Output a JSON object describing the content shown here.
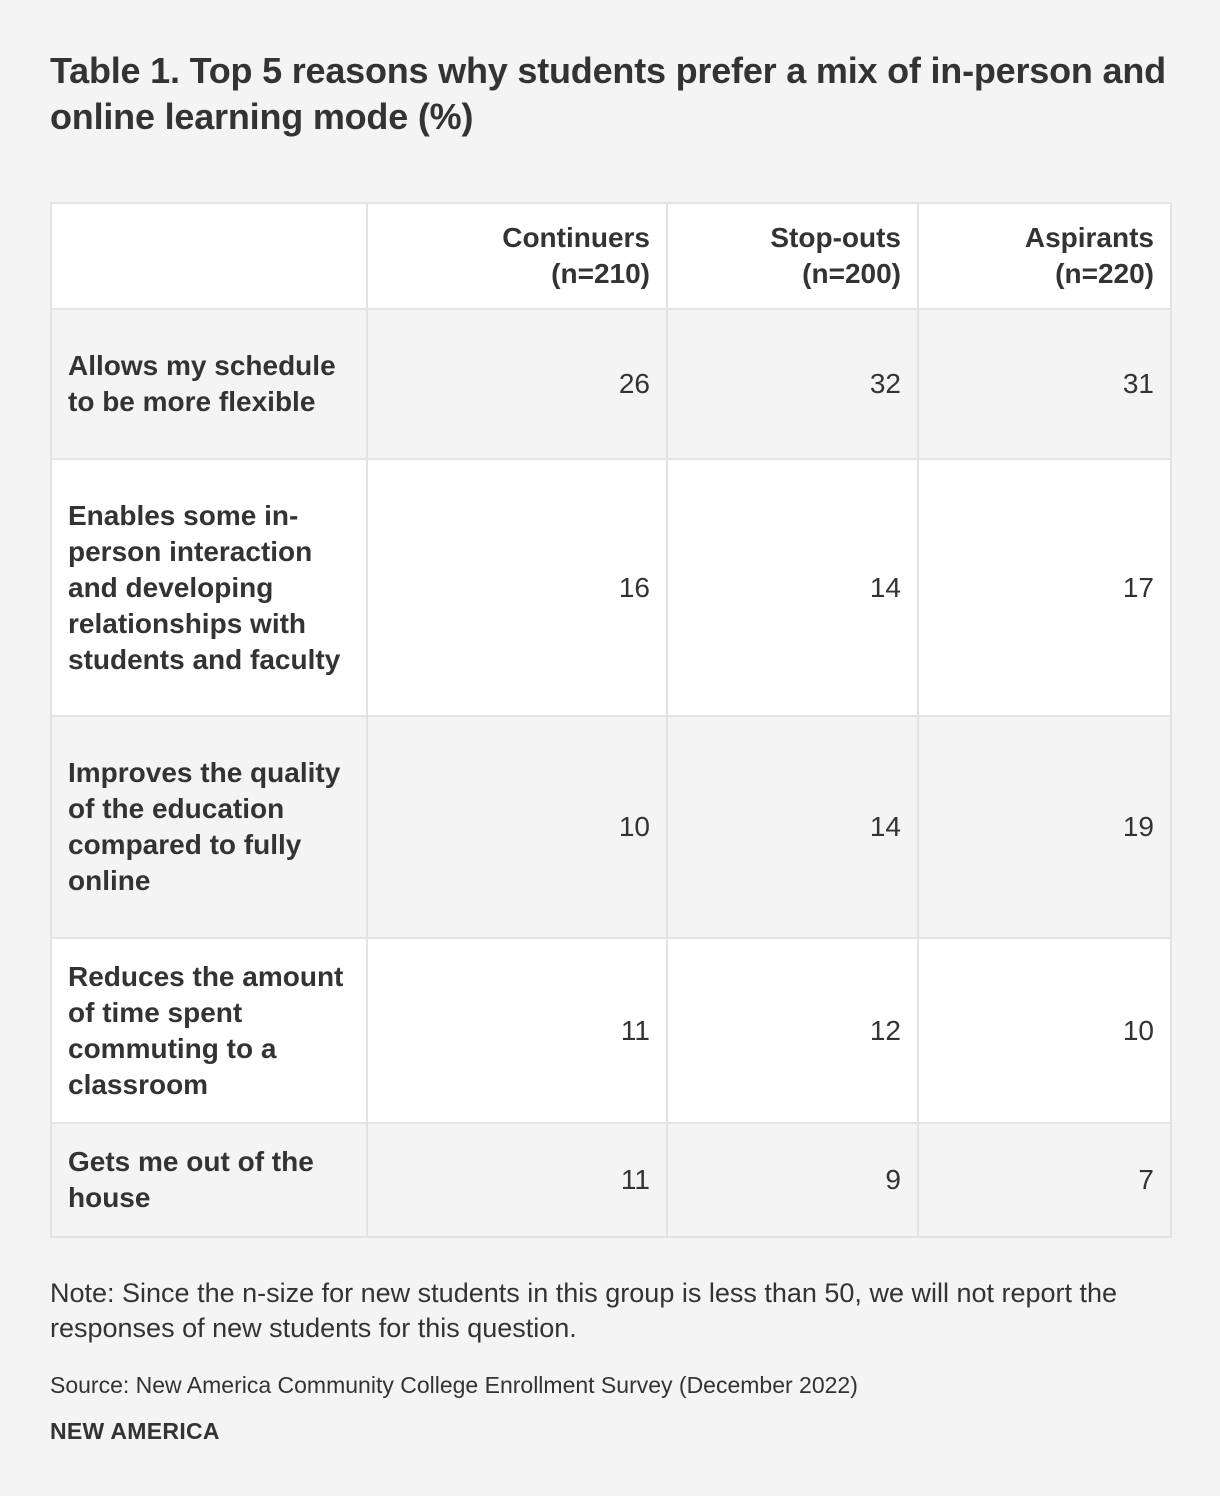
{
  "chart_data": {
    "type": "table",
    "title": "Table 1. Top 5 reasons why students prefer a mix of in-person and online learning mode (%)",
    "columns": [
      {
        "name": "Continuers",
        "n": "(n=210)"
      },
      {
        "name": "Stop-outs",
        "n": "(n=200)"
      },
      {
        "name": "Aspirants",
        "n": "(n=220)"
      }
    ],
    "rows": [
      {
        "label": "Allows my schedule to be more flexible",
        "values": [
          "26",
          "32",
          "31"
        ]
      },
      {
        "label": "Enables some in-person interaction and developing relationships with students and faculty",
        "values": [
          "16",
          "14",
          "17"
        ]
      },
      {
        "label": "Improves the quality of the education compared to fully online",
        "values": [
          "10",
          "14",
          "19"
        ]
      },
      {
        "label": "Reduces the amount of time spent commuting to a classroom",
        "values": [
          "11",
          "12",
          "10"
        ]
      },
      {
        "label": "Gets me out of the house",
        "values": [
          "11",
          "9",
          "7"
        ]
      }
    ],
    "note": "Note: Since the n-size for new students in this group is less than 50, we will not report the responses of new students for this question.",
    "source": "Source: New America Community College Enrollment Survey (December 2022)",
    "brand": "NEW AMERICA"
  },
  "colors": {
    "background": "#f4f4f4",
    "text": "#333333",
    "border": "#e3e3e3",
    "row_white": "#ffffff"
  }
}
